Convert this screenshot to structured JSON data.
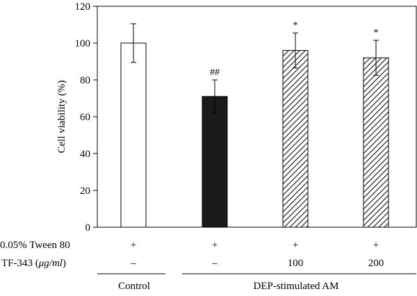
{
  "chart_data": {
    "type": "bar",
    "title": "",
    "xlabel": "",
    "ylabel": "Cell viability (%)",
    "ylim": [
      0,
      120
    ],
    "yticks": [
      0,
      20,
      40,
      60,
      80,
      100,
      120
    ],
    "grid": false,
    "categories": [
      "Control",
      "DEP",
      "DEP + TF-343 100",
      "DEP + TF-343 200"
    ],
    "values": [
      100,
      71,
      96,
      92
    ],
    "errors": [
      10.5,
      9,
      9.5,
      9.5
    ],
    "bar_styles": [
      "white",
      "black",
      "hatched",
      "hatched"
    ],
    "annotations": [
      "",
      "##",
      "*",
      "*"
    ]
  },
  "conditions": [
    {
      "label": "0.05% Tween 80",
      "values": [
        "+",
        "+",
        "+",
        "+"
      ]
    },
    {
      "label_prefix": "TF-343 (",
      "label_unit": "μg/ml",
      "label_suffix": ")",
      "values": [
        "–",
        "–",
        "100",
        "200"
      ]
    }
  ],
  "groups": [
    "Control",
    "DEP-stimulated AM"
  ],
  "colors": {
    "bar_black": "#1a1a1a",
    "bar_white": "#ffffff",
    "stroke": "#000000"
  }
}
